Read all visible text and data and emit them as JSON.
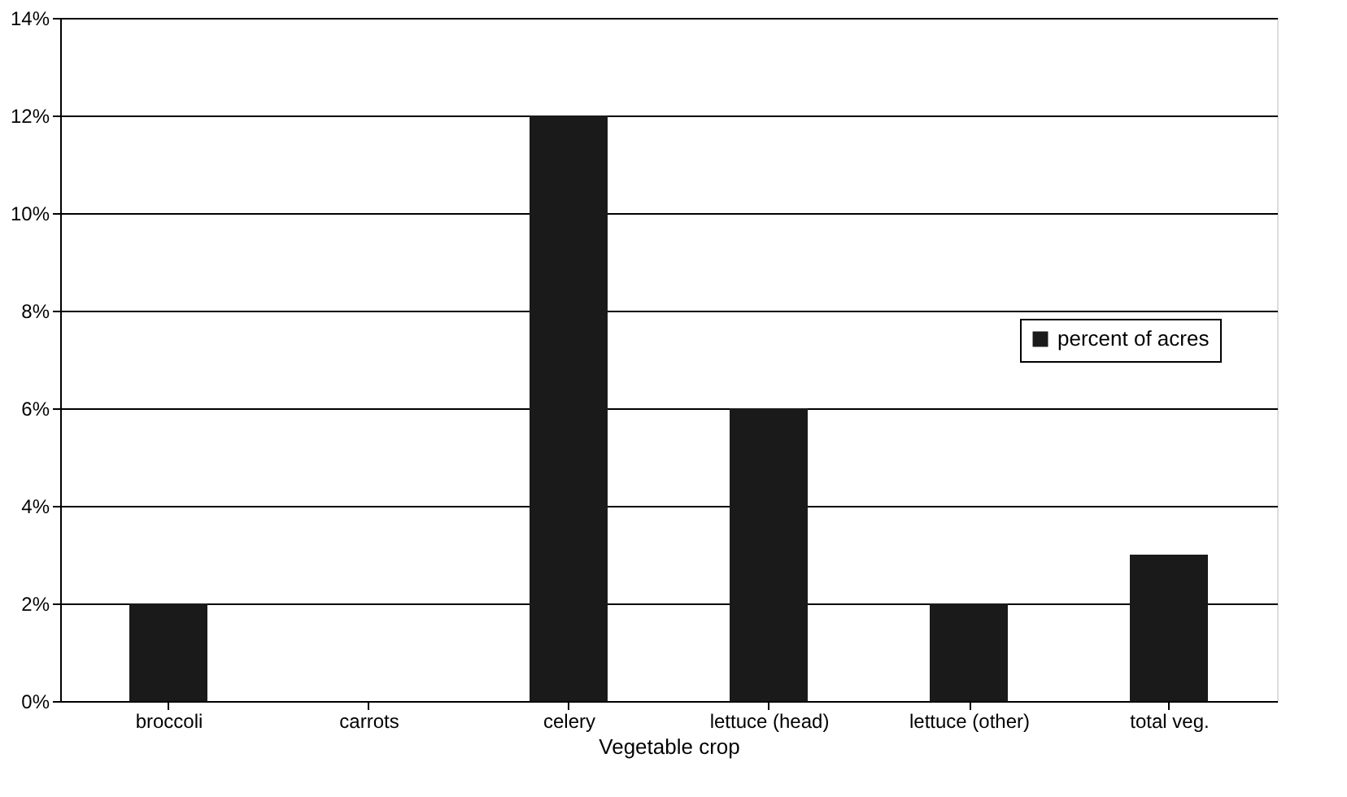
{
  "chart_data": {
    "type": "bar",
    "xlabel": "Vegetable crop",
    "categories": [
      "broccoli",
      "carrots",
      "celery",
      "lettuce (head)",
      "lettuce (other)",
      "total veg."
    ],
    "series": [
      {
        "name": "percent of acres",
        "color": "#1a1a1a",
        "values": [
          2,
          0,
          12,
          6,
          2,
          3
        ]
      }
    ],
    "ylim": [
      0,
      14
    ],
    "yticks": [
      {
        "value": 0,
        "label": "0%"
      },
      {
        "value": 2,
        "label": "2%"
      },
      {
        "value": 4,
        "label": "4%"
      },
      {
        "value": 6,
        "label": "6%"
      },
      {
        "value": 8,
        "label": "8%"
      },
      {
        "value": 10,
        "label": "10%"
      },
      {
        "value": 12,
        "label": "12%"
      },
      {
        "value": 14,
        "label": "14%"
      }
    ],
    "grid": "y",
    "legend": "right"
  }
}
